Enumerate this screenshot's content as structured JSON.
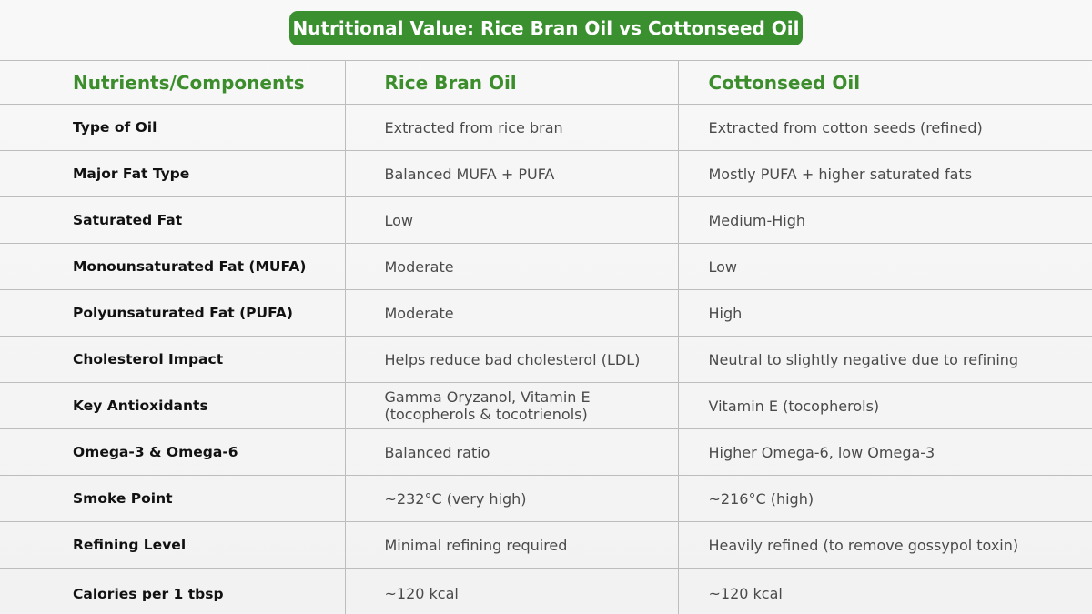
{
  "title": "Nutritional Value: Rice Bran Oil vs Cottonseed Oil",
  "columns": [
    "Nutrients/Components",
    "Rice Bran Oil",
    "Cottonseed Oil"
  ],
  "rows": [
    [
      "Type of Oil",
      "Extracted from rice bran",
      "Extracted from cotton seeds (refined)"
    ],
    [
      "Major Fat Type",
      "Balanced MUFA + PUFA",
      "Mostly PUFA + higher saturated fats"
    ],
    [
      "Saturated Fat",
      "Low",
      "Medium-High"
    ],
    [
      "Monounsaturated Fat (MUFA)",
      "Moderate",
      "Low"
    ],
    [
      "Polyunsaturated Fat (PUFA)",
      "Moderate",
      "High"
    ],
    [
      "Cholesterol Impact",
      "Helps reduce bad cholesterol (LDL)",
      "Neutral to slightly negative due to refining"
    ],
    [
      "Key Antioxidants",
      "Gamma Oryzanol, Vitamin E (tocopherols & tocotrienols)",
      "Vitamin E (tocopherols)"
    ],
    [
      "Omega-3 & Omega-6",
      "Balanced ratio",
      "Higher Omega-6, low Omega-3"
    ],
    [
      "Smoke Point",
      "~232°C (very high)",
      "~216°C (high)"
    ],
    [
      "Refining Level",
      "Minimal refining required",
      "Heavily refined (to remove gossypol toxin)"
    ],
    [
      "Calories per 1 tbsp",
      "~120 kcal",
      "~120 kcal"
    ]
  ],
  "colors": {
    "accent": "#3a8f2f",
    "header_text": "#3c8d2c",
    "grid": "#bdbdbd"
  }
}
